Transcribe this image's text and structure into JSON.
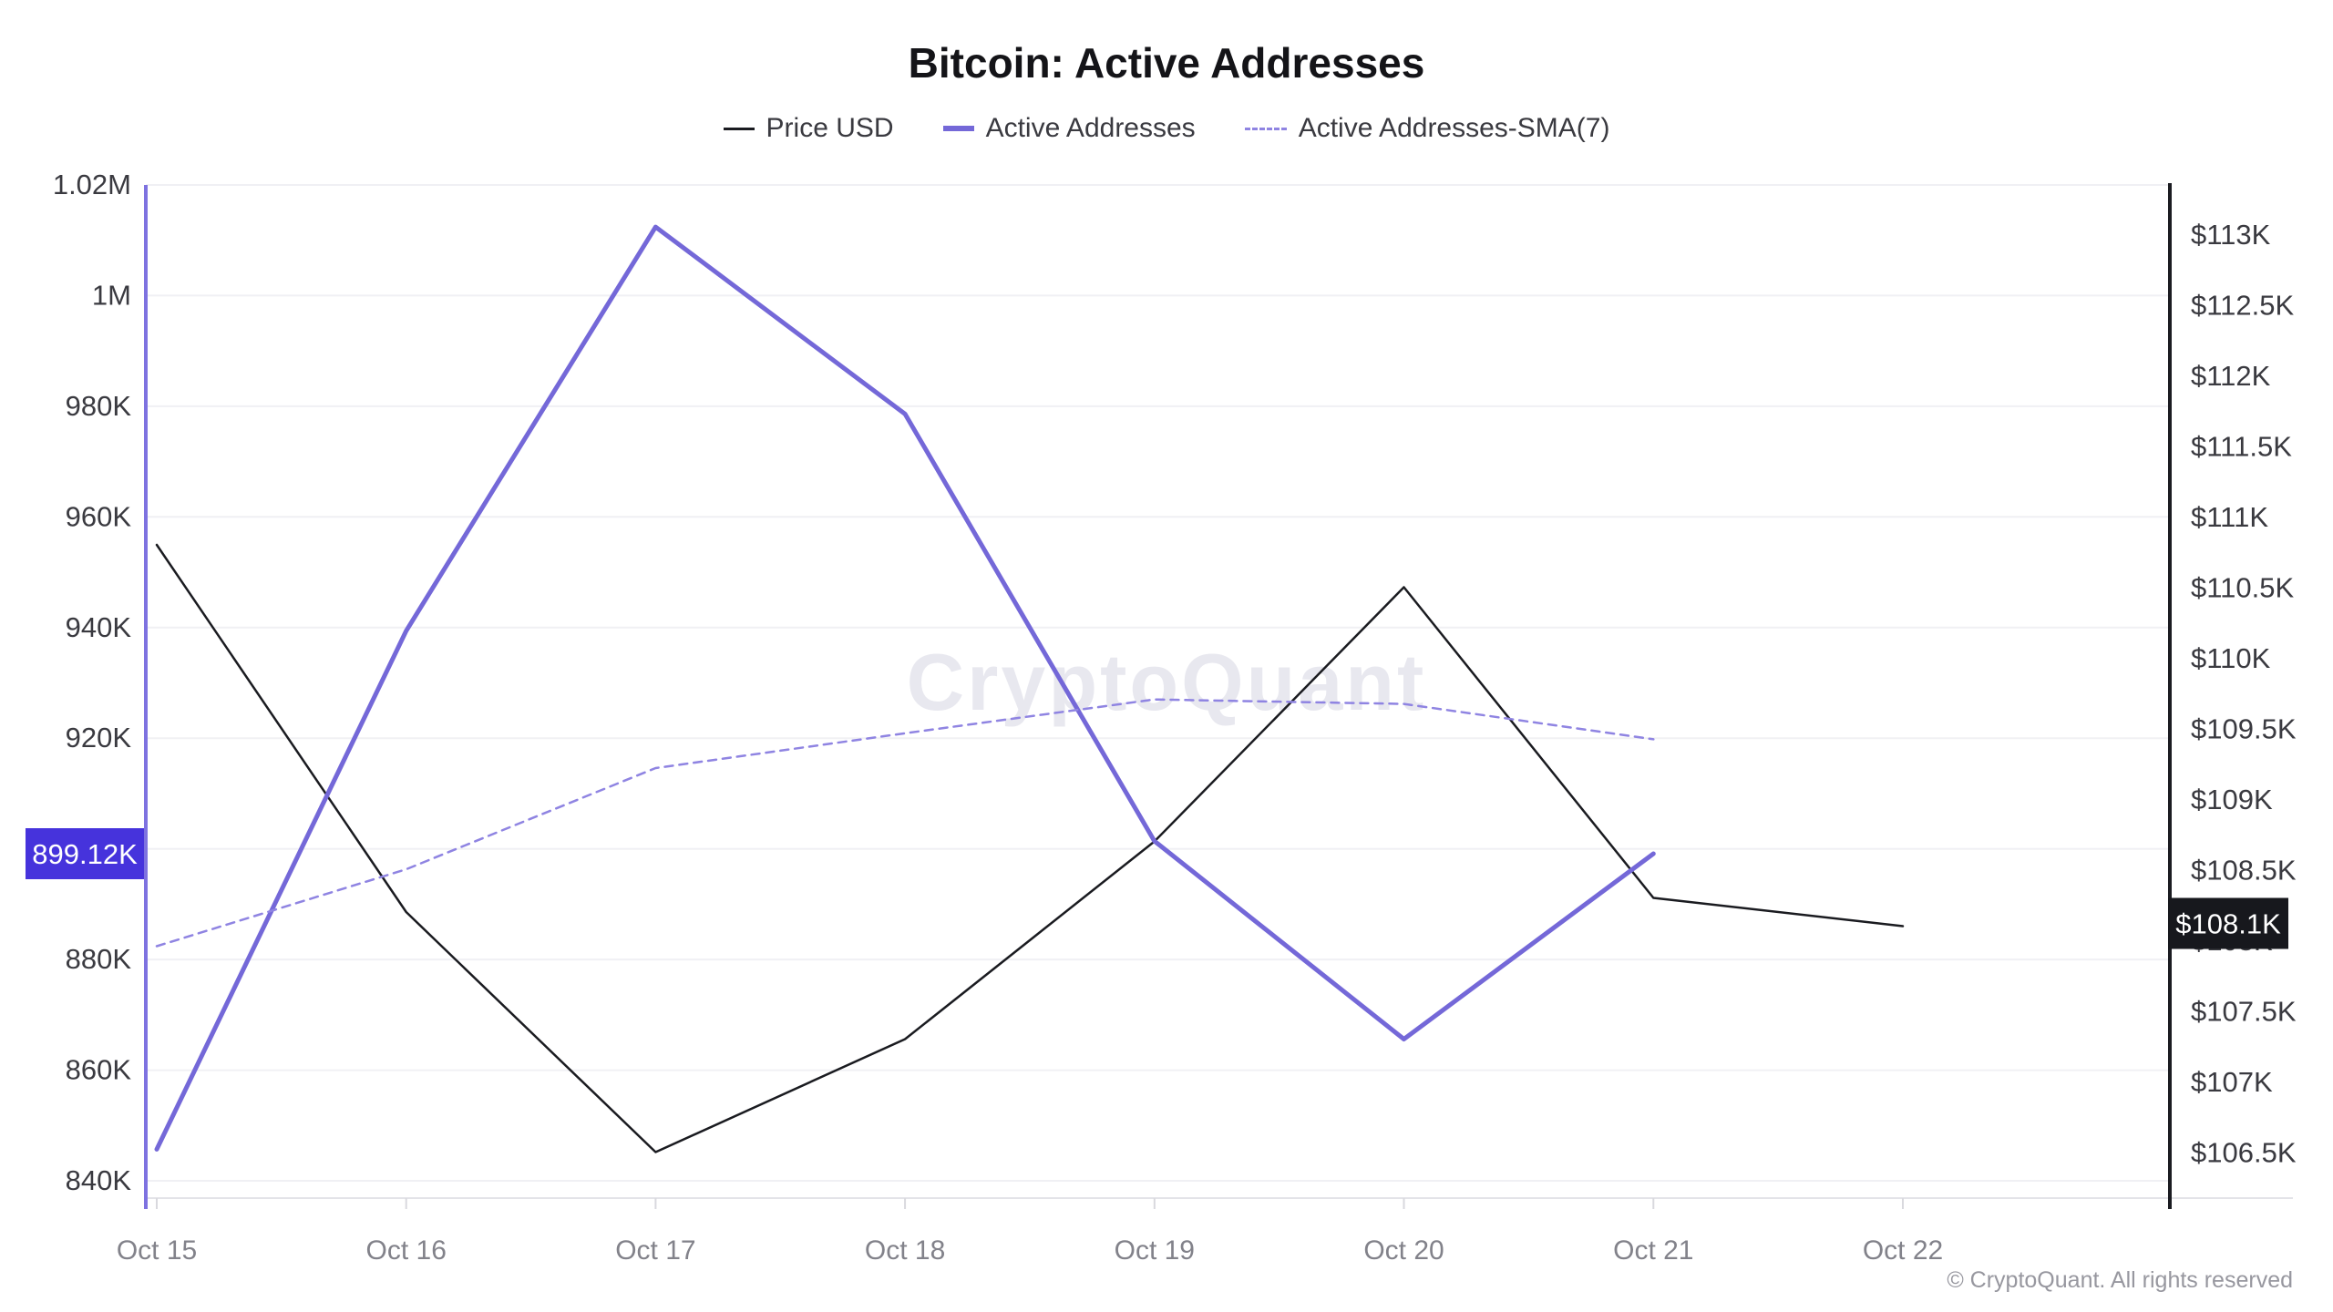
{
  "title": "Bitcoin: Active Addresses",
  "watermark": "CryptoQuant",
  "copyright": "© CryptoQuant. All rights reserved",
  "legend": [
    {
      "label": "Price USD"
    },
    {
      "label": "Active Addresses"
    },
    {
      "label": "Active Addresses-SMA(7)"
    }
  ],
  "colors": {
    "price_line": "#1a1b20",
    "active_addresses_line": "#7468d8",
    "sma_line": "#8f84e2",
    "left_axis_line": "#7e72e0",
    "right_axis_line": "#1b1c21",
    "left_badge_bg": "#4633dc",
    "right_badge_bg": "#17181d",
    "badge_text": "#ffffff",
    "gridline": "#f0f0f4",
    "x_axis_line": "#e3e3e8",
    "tick_mark": "#d9d9de",
    "date_label": "#82828a",
    "axis_label": "#3a3a40",
    "watermark_text": "#e8e8ef",
    "copyright_text": "#97979f",
    "title_text": "#141418"
  },
  "chart_data": {
    "type": "line",
    "title": "Bitcoin: Active Addresses",
    "x_categories": [
      "Oct 15",
      "Oct 16",
      "Oct 17",
      "Oct 18",
      "Oct 19",
      "Oct 20",
      "Oct 21",
      "Oct 22"
    ],
    "series": [
      {
        "name": "Price USD",
        "axis": "right",
        "style": "solid",
        "color": "#1a1b20",
        "stroke_width": 2.5,
        "unit": "thousand USD",
        "values": [
          110.8,
          108.2,
          106.5,
          107.3,
          108.7,
          110.5,
          108.3,
          108.1
        ]
      },
      {
        "name": "Active Addresses",
        "axis": "left",
        "style": "solid",
        "color": "#7468d8",
        "stroke_width": 5,
        "unit": "thousand addresses",
        "values": [
          845.7,
          939.4,
          1012.4,
          978.6,
          901.4,
          865.6,
          899.12,
          null
        ]
      },
      {
        "name": "Active Addresses-SMA(7)",
        "axis": "left",
        "style": "dashed",
        "color": "#8f84e2",
        "stroke_width": 2.5,
        "unit": "thousand addresses",
        "values": [
          882.4,
          896.3,
          914.6,
          920.9,
          927.0,
          926.2,
          919.8,
          null
        ]
      }
    ],
    "left_axis": {
      "range_k": [
        840,
        1020
      ],
      "tick_values": [
        1020,
        1000,
        980,
        960,
        940,
        920,
        880,
        860,
        840
      ],
      "tick_labels": [
        "1.02M",
        "1M",
        "980K",
        "960K",
        "940K",
        "920K",
        "880K",
        "860K",
        "840K"
      ],
      "badge": {
        "label": "899.12K",
        "value": 899.12
      }
    },
    "right_axis": {
      "range_k": [
        106.5,
        113
      ],
      "tick_values": [
        113,
        112.5,
        112,
        111.5,
        111,
        110.5,
        110,
        109.5,
        109,
        108.5,
        108,
        107.5,
        107,
        106.5
      ],
      "tick_labels": [
        "$113K",
        "$112.5K",
        "$112K",
        "$111.5K",
        "$111K",
        "$110.5K",
        "$110K",
        "$109.5K",
        "$109K",
        "$108.5K",
        "$108K",
        "$107.5K",
        "$107K",
        "$106.5K"
      ],
      "badge": {
        "label": "$108.1K",
        "value": 108.1
      }
    },
    "gridline_values": [
      1020,
      1000,
      980,
      960,
      940,
      920,
      900,
      880,
      860,
      840
    ],
    "legend_position": "top-center",
    "grid": true
  }
}
